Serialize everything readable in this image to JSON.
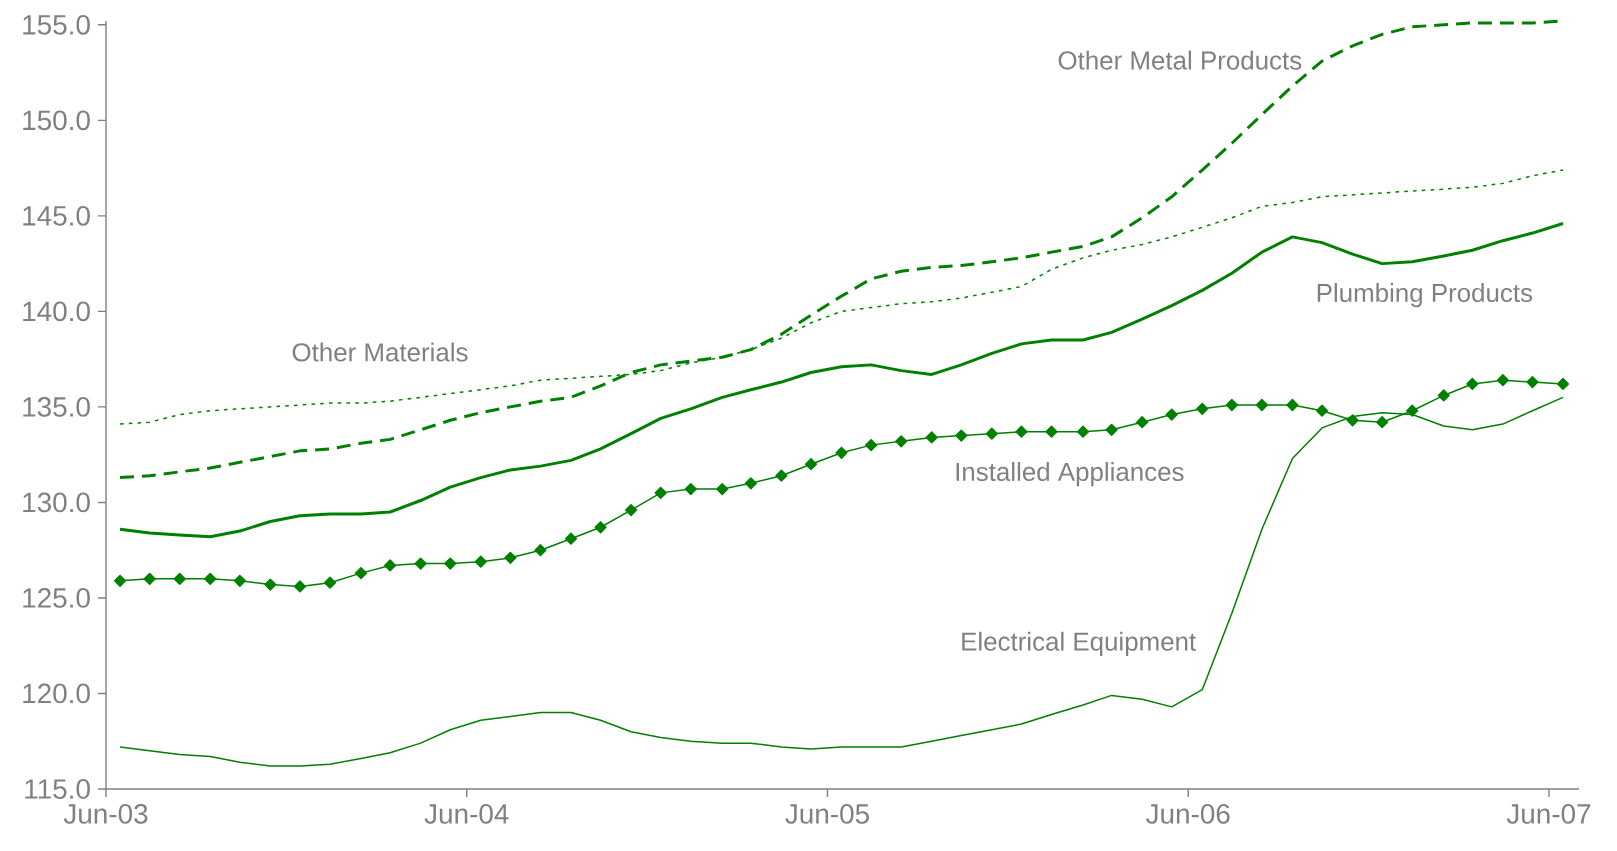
{
  "chart_data": {
    "type": "line",
    "x": [
      "2003-06-15",
      "2003-07-15",
      "2003-08-15",
      "2003-09-15",
      "2003-10-15",
      "2003-11-15",
      "2003-12-15",
      "2004-01-15",
      "2004-02-15",
      "2004-03-15",
      "2004-04-15",
      "2004-05-15",
      "2004-06-15",
      "2004-07-15",
      "2004-08-15",
      "2004-09-15",
      "2004-10-15",
      "2004-11-15",
      "2004-12-15",
      "2005-01-15",
      "2005-02-15",
      "2005-03-15",
      "2005-04-15",
      "2005-05-15",
      "2005-06-15",
      "2005-07-15",
      "2005-08-15",
      "2005-09-15",
      "2005-10-15",
      "2005-11-15",
      "2005-12-15",
      "2006-01-15",
      "2006-02-15",
      "2006-03-15",
      "2006-04-15",
      "2006-05-15",
      "2006-06-15",
      "2006-07-15",
      "2006-08-15",
      "2006-09-15",
      "2006-10-15",
      "2006-11-15",
      "2006-12-15",
      "2007-01-15",
      "2007-02-15",
      "2007-03-15",
      "2007-04-15",
      "2007-05-15",
      "2007-06-15"
    ],
    "series": [
      {
        "name": "Other Metal Products",
        "color": "#008000",
        "line_style": "dashed",
        "values": [
          131.3,
          131.4,
          131.6,
          131.8,
          132.1,
          132.4,
          132.7,
          132.8,
          133.1,
          133.3,
          133.8,
          134.3,
          134.7,
          135.0,
          135.3,
          135.5,
          136.1,
          136.8,
          137.2,
          137.4,
          137.6,
          138.0,
          138.8,
          139.8,
          140.8,
          141.7,
          142.1,
          142.3,
          142.4,
          142.6,
          142.8,
          143.1,
          143.4,
          143.9,
          144.9,
          146.0,
          147.4,
          148.8,
          150.3,
          151.8,
          153.1,
          153.9,
          154.5,
          154.9,
          155.0,
          155.1,
          155.1,
          155.1,
          155.2
        ]
      },
      {
        "name": "Other Materials",
        "color": "#008000",
        "line_style": "dotted",
        "values": [
          134.1,
          134.2,
          134.6,
          134.8,
          134.9,
          135.0,
          135.1,
          135.2,
          135.2,
          135.3,
          135.5,
          135.7,
          135.9,
          136.1,
          136.4,
          136.5,
          136.6,
          136.7,
          136.9,
          137.3,
          137.6,
          138.0,
          138.6,
          139.4,
          140.0,
          140.2,
          140.4,
          140.5,
          140.7,
          141.0,
          141.3,
          142.2,
          142.8,
          143.2,
          143.5,
          143.9,
          144.4,
          144.9,
          145.5,
          145.7,
          146.0,
          146.1,
          146.2,
          146.3,
          146.4,
          146.5,
          146.7,
          147.1,
          147.4
        ]
      },
      {
        "name": "Plumbing Products",
        "color": "#008000",
        "line_style": "solid",
        "values": [
          128.6,
          128.4,
          128.3,
          128.2,
          128.5,
          129.0,
          129.3,
          129.4,
          129.4,
          129.5,
          130.1,
          130.8,
          131.3,
          131.7,
          131.9,
          132.2,
          132.8,
          133.6,
          134.4,
          134.9,
          135.5,
          135.9,
          136.3,
          136.8,
          137.1,
          137.2,
          136.9,
          136.7,
          137.2,
          137.8,
          138.3,
          138.5,
          138.5,
          138.9,
          139.6,
          140.3,
          141.1,
          142.0,
          143.1,
          143.9,
          143.6,
          143.0,
          142.5,
          142.6,
          142.9,
          143.2,
          143.7,
          144.1,
          144.6
        ]
      },
      {
        "name": "Installed Appliances",
        "color": "#008000",
        "line_style": "solid",
        "marker": "diamond",
        "values": [
          125.9,
          126.0,
          126.0,
          126.0,
          125.9,
          125.7,
          125.6,
          125.8,
          126.3,
          126.7,
          126.8,
          126.8,
          126.9,
          127.1,
          127.5,
          128.1,
          128.7,
          129.6,
          130.5,
          130.7,
          130.7,
          131.0,
          131.4,
          132.0,
          132.6,
          133.0,
          133.2,
          133.4,
          133.5,
          133.6,
          133.7,
          133.7,
          133.7,
          133.8,
          134.2,
          134.6,
          134.9,
          135.1,
          135.1,
          135.1,
          134.8,
          134.3,
          134.2,
          134.8,
          135.6,
          136.2,
          136.4,
          136.3,
          136.2
        ]
      },
      {
        "name": "Electrical Equipment",
        "color": "#008000",
        "line_style": "solid",
        "values": [
          117.2,
          117.0,
          116.8,
          116.7,
          116.4,
          116.2,
          116.2,
          116.3,
          116.6,
          116.9,
          117.4,
          118.1,
          118.6,
          118.8,
          119.0,
          119.0,
          118.6,
          118.0,
          117.7,
          117.5,
          117.4,
          117.4,
          117.2,
          117.1,
          117.2,
          117.2,
          117.2,
          117.5,
          117.8,
          118.1,
          118.4,
          118.9,
          119.4,
          119.9,
          119.7,
          119.3,
          120.2,
          124.2,
          128.6,
          132.3,
          133.9,
          134.5,
          134.7,
          134.6,
          134.0,
          133.8,
          134.1,
          134.8,
          135.5
        ]
      }
    ],
    "xlim": [
      "2003-06-01",
      "2007-07-01"
    ],
    "xticks": [
      {
        "value": "2003-06-01",
        "label": "Jun-03"
      },
      {
        "value": "2004-06-01",
        "label": "Jun-04"
      },
      {
        "value": "2005-06-01",
        "label": "Jun-05"
      },
      {
        "value": "2006-06-01",
        "label": "Jun-06"
      },
      {
        "value": "2007-06-01",
        "label": "Jun-07"
      }
    ],
    "ylim": [
      115,
      155.2
    ],
    "yticks": [
      {
        "value": 115,
        "label": "115.0"
      },
      {
        "value": 120,
        "label": "120.0"
      },
      {
        "value": 125,
        "label": "125.0"
      },
      {
        "value": 130,
        "label": "130.0"
      },
      {
        "value": 135,
        "label": "135.0"
      },
      {
        "value": 140,
        "label": "140.0"
      },
      {
        "value": 145,
        "label": "145.0"
      },
      {
        "value": 150,
        "label": "150.0"
      },
      {
        "value": 155,
        "label": "155.0"
      }
    ]
  }
}
